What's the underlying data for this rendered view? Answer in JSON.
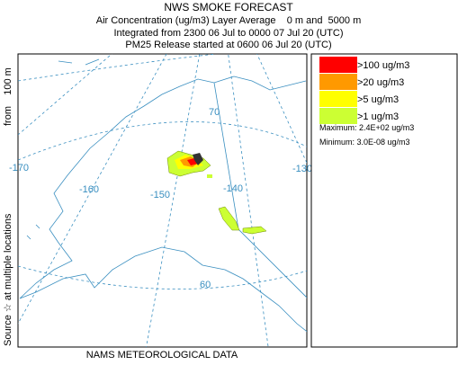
{
  "header": {
    "title": "NWS SMOKE FORECAST",
    "lines": [
      "Air Concentration (ug/m3) Layer Average    0 m and  5000 m",
      "Integrated from 2300 06 Jul to 0000 07 Jul 20 (UTC)",
      "PM25 Release started at 0600 06 Jul 20 (UTC)"
    ]
  },
  "side_labels": [
    "Source ☆ at multiple locations",
    "from    100 m"
  ],
  "map": {
    "labels": [
      "-170",
      "-160",
      "-150",
      "-140",
      "-130",
      "70",
      "60"
    ]
  },
  "legend": {
    "items": [
      {
        "label": ">100 ug/m3",
        "color": "#ff0000"
      },
      {
        "label": ">20 ug/m3",
        "color": "#ff9900"
      },
      {
        "label": ">5 ug/m3",
        "color": "#ffff00"
      },
      {
        "label": ">1 ug/m3",
        "color": "#ccff33"
      }
    ],
    "maximum": "Maximum: 2.4E+02 ug/m3",
    "minimum": "Minimum: 3.0E-08 ug/m3"
  },
  "footer": "NAMS METEOROLOGICAL DATA"
}
